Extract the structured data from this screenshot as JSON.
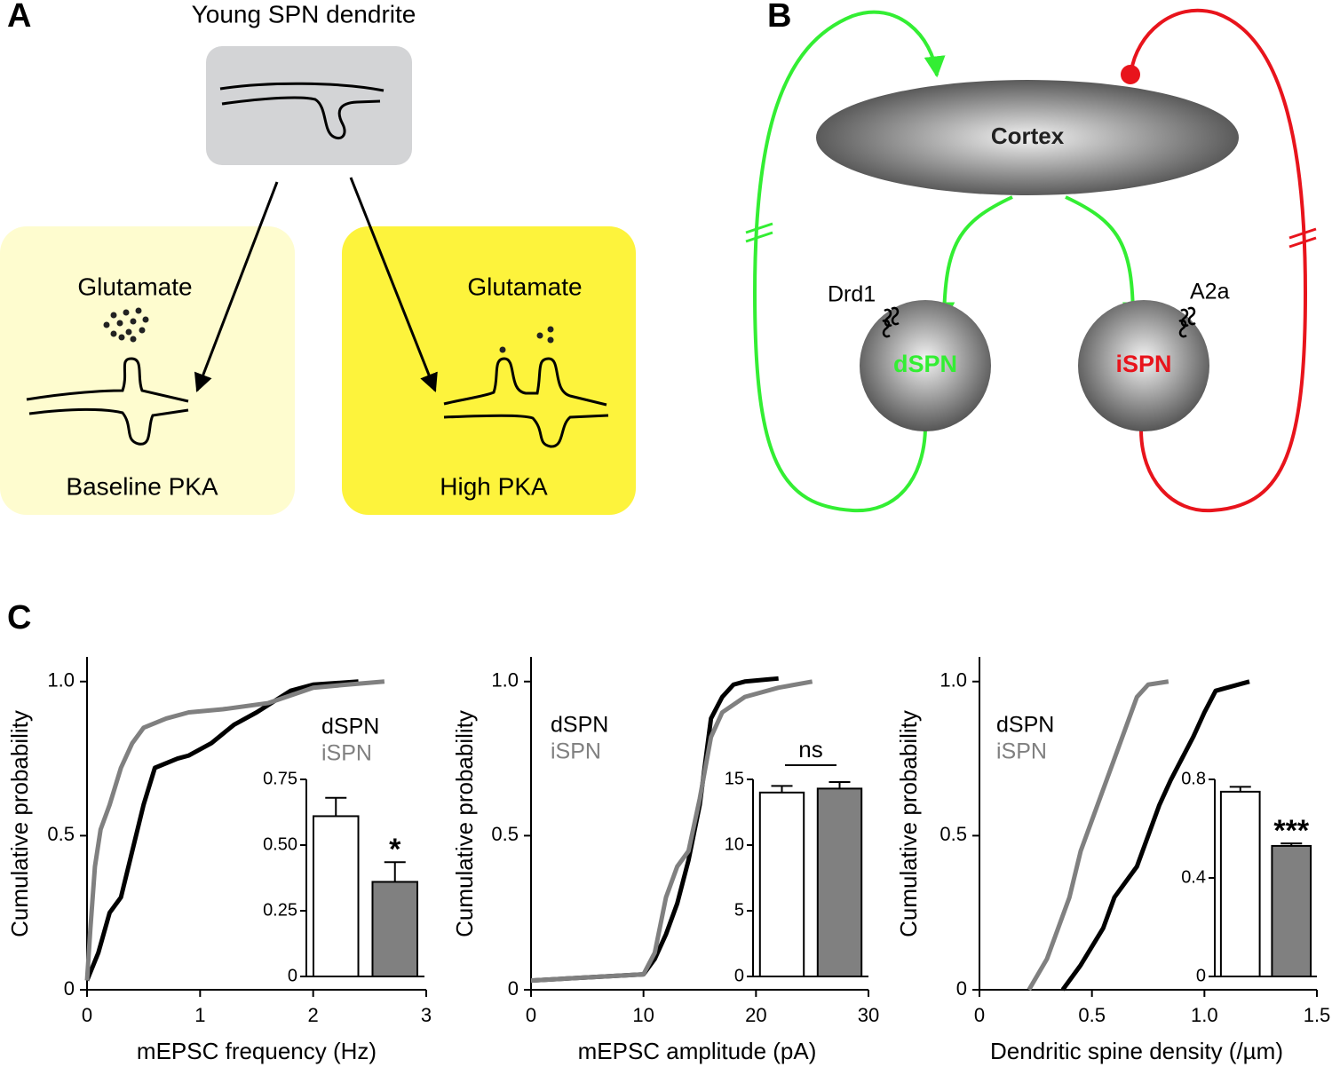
{
  "panel_a": {
    "label": "A",
    "title": "Young SPN dendrite",
    "left": {
      "stimulus": "Glutamate",
      "condition": "Baseline PKA"
    },
    "right": {
      "stimulus": "Glutamate",
      "condition": "High PKA"
    }
  },
  "panel_b": {
    "label": "B",
    "cortex": "Cortex",
    "left": {
      "receptor": "Drd1",
      "cell": "dSPN"
    },
    "right": {
      "receptor": "A2a",
      "cell": "iSPN"
    }
  },
  "panel_c": {
    "label": "C"
  },
  "chart_data": [
    {
      "type": "line",
      "xlabel": "mEPSC frequency (Hz)",
      "ylabel": "Cumulative probability",
      "xlim": [
        0,
        3
      ],
      "ylim": [
        0,
        1.08
      ],
      "xticks": [
        0,
        1,
        2,
        3
      ],
      "yticks": [
        0,
        0.5,
        {
          "value": 1,
          "label": "1.0"
        }
      ],
      "series": [
        {
          "name": "dSPN",
          "color": "#000000",
          "x": [
            0,
            0.1,
            0.2,
            0.3,
            0.4,
            0.5,
            0.6,
            0.8,
            0.9,
            1.1,
            1.3,
            1.5,
            1.8,
            2.0,
            2.4
          ],
          "values": [
            0.03,
            0.12,
            0.25,
            0.3,
            0.45,
            0.6,
            0.72,
            0.75,
            0.76,
            0.8,
            0.86,
            0.9,
            0.97,
            0.99,
            1.0
          ]
        },
        {
          "name": "iSPN",
          "color": "#808080",
          "x": [
            0,
            0.03,
            0.07,
            0.12,
            0.2,
            0.3,
            0.4,
            0.5,
            0.7,
            0.9,
            1.2,
            1.6,
            2.0,
            2.3,
            2.63
          ],
          "values": [
            0.03,
            0.2,
            0.4,
            0.52,
            0.6,
            0.72,
            0.8,
            0.85,
            0.88,
            0.9,
            0.91,
            0.93,
            0.98,
            0.99,
            1.0
          ]
        }
      ]
    },
    {
      "type": "line",
      "xlabel": "mEPSC amplitude (pA)",
      "ylabel": "Cumulative probability",
      "xlim": [
        0,
        30
      ],
      "ylim": [
        0,
        1.08
      ],
      "xticks": [
        0,
        10,
        20,
        30
      ],
      "yticks": [
        0,
        0.5,
        {
          "value": 1,
          "label": "1.0"
        }
      ],
      "series": [
        {
          "name": "dSPN",
          "color": "#000000",
          "x": [
            0,
            10,
            11,
            12,
            13,
            14,
            15,
            16,
            17,
            18,
            19,
            22
          ],
          "values": [
            0.03,
            0.05,
            0.1,
            0.18,
            0.28,
            0.42,
            0.6,
            0.88,
            0.95,
            0.99,
            1.0,
            1.01
          ]
        },
        {
          "name": "iSPN",
          "color": "#808080",
          "x": [
            0,
            10,
            11,
            12,
            13,
            14,
            15,
            16,
            17,
            19,
            22,
            25
          ],
          "values": [
            0.03,
            0.05,
            0.12,
            0.3,
            0.4,
            0.45,
            0.62,
            0.82,
            0.9,
            0.95,
            0.98,
            1.0
          ]
        }
      ]
    },
    {
      "type": "line",
      "xlabel": "Dendritic spine density (/µm)",
      "ylabel": "Cumulative probability",
      "xlim": [
        0,
        1.5
      ],
      "ylim": [
        0,
        1.08
      ],
      "xticks": [
        0,
        0.5,
        {
          "value": 1,
          "label": "1.0"
        },
        1.5
      ],
      "yticks": [
        0,
        0.5,
        {
          "value": 1,
          "label": "1.0"
        }
      ],
      "series": [
        {
          "name": "dSPN",
          "color": "#000000",
          "x": [
            0.37,
            0.45,
            0.55,
            0.6,
            0.7,
            0.75,
            0.8,
            0.85,
            0.9,
            0.95,
            1.0,
            1.05,
            1.2
          ],
          "values": [
            0,
            0.08,
            0.2,
            0.3,
            0.4,
            0.5,
            0.6,
            0.68,
            0.75,
            0.82,
            0.9,
            0.97,
            1.0
          ]
        },
        {
          "name": "iSPN",
          "color": "#808080",
          "x": [
            0.22,
            0.3,
            0.4,
            0.45,
            0.5,
            0.55,
            0.6,
            0.65,
            0.7,
            0.75,
            0.84
          ],
          "values": [
            0,
            0.1,
            0.3,
            0.45,
            0.55,
            0.65,
            0.75,
            0.85,
            0.95,
            0.99,
            1.0
          ]
        }
      ]
    },
    {
      "type": "bar",
      "categories": [
        null,
        null
      ],
      "values": [
        0.61,
        0.36
      ],
      "errors": [
        0.07,
        0.075
      ],
      "colors": [
        "#ffffff",
        "#808080"
      ],
      "ylim": [
        0,
        0.75
      ],
      "yticks": [
        0,
        0.25,
        {
          "value": 0.5,
          "label": "0.50"
        },
        0.75
      ],
      "annotation": "*"
    },
    {
      "type": "bar",
      "categories": [
        null,
        null
      ],
      "values": [
        14.0,
        14.3
      ],
      "errors": [
        0.5,
        0.5
      ],
      "colors": [
        "#ffffff",
        "#808080"
      ],
      "ylim": [
        0,
        15
      ],
      "yticks": [
        0,
        5,
        10,
        15
      ],
      "annotation": "ns"
    },
    {
      "type": "bar",
      "categories": [
        null,
        null
      ],
      "values": [
        0.75,
        0.53
      ],
      "errors": [
        0.02,
        0.01
      ],
      "colors": [
        "#ffffff",
        "#808080"
      ],
      "ylim": [
        0,
        0.8
      ],
      "yticks": [
        0,
        0.4,
        0.8
      ],
      "annotation": "***"
    }
  ]
}
